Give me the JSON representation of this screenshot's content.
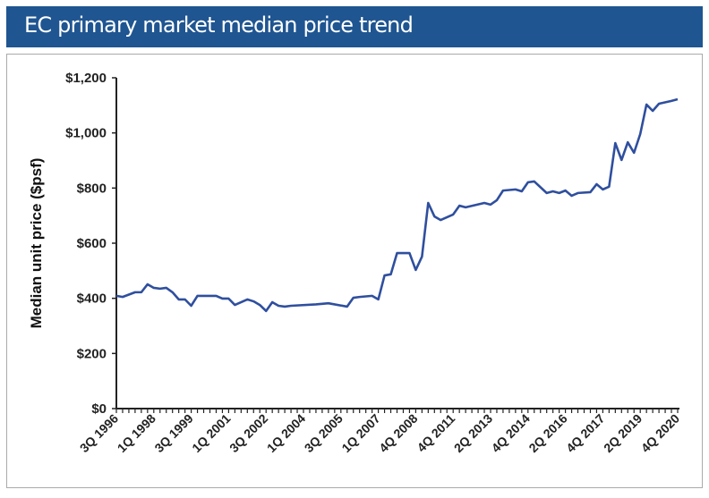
{
  "header": {
    "title": "EC primary market median price trend"
  },
  "chart_data": {
    "type": "line",
    "title": "EC primary market median price trend",
    "xlabel": "",
    "ylabel": "Median unit price ($psf)",
    "ylim": [
      0,
      1200
    ],
    "yticks": [
      0,
      200,
      400,
      600,
      800,
      1000,
      1200
    ],
    "ytick_labels": [
      "$0",
      "$200",
      "$400",
      "$600",
      "$800",
      "$1,000",
      "$1,200"
    ],
    "x_category_count": 91,
    "xtick_labels": [
      "3Q 1996",
      "1Q 1998",
      "3Q 1999",
      "1Q 2001",
      "3Q 2002",
      "1Q 2004",
      "3Q 2005",
      "1Q 2007",
      "4Q 2008",
      "4Q 2011",
      "2Q 2013",
      "4Q 2014",
      "2Q 2016",
      "4Q 2017",
      "2Q 2019",
      "4Q 2020"
    ],
    "grid": false,
    "line_color": "#2f4f9e",
    "series": [
      {
        "points": [
          [
            0,
            409
          ],
          [
            1,
            405
          ],
          [
            3,
            422
          ],
          [
            4,
            422
          ],
          [
            5,
            451
          ],
          [
            6,
            438
          ],
          [
            7,
            435
          ],
          [
            8,
            438
          ],
          [
            9,
            422
          ],
          [
            10,
            396
          ],
          [
            11,
            396
          ],
          [
            12,
            373
          ],
          [
            13,
            409
          ],
          [
            16,
            409
          ],
          [
            17,
            399
          ],
          [
            18,
            399
          ],
          [
            19,
            376
          ],
          [
            21,
            396
          ],
          [
            22,
            389
          ],
          [
            23,
            376
          ],
          [
            24,
            354
          ],
          [
            25,
            386
          ],
          [
            26,
            373
          ],
          [
            27,
            370
          ],
          [
            28,
            373
          ],
          [
            32,
            378
          ],
          [
            34,
            382
          ],
          [
            37,
            370
          ],
          [
            38,
            402
          ],
          [
            39,
            405
          ],
          [
            41,
            409
          ],
          [
            42,
            396
          ],
          [
            43,
            483
          ],
          [
            44,
            487
          ],
          [
            45,
            564
          ],
          [
            47,
            564
          ],
          [
            48,
            503
          ],
          [
            49,
            551
          ],
          [
            50,
            746
          ],
          [
            51,
            697
          ],
          [
            52,
            684
          ],
          [
            54,
            704
          ],
          [
            55,
            736
          ],
          [
            56,
            730
          ],
          [
            59,
            746
          ],
          [
            60,
            740
          ],
          [
            61,
            756
          ],
          [
            62,
            791
          ],
          [
            64,
            795
          ],
          [
            65,
            788
          ],
          [
            66,
            821
          ],
          [
            67,
            824
          ],
          [
            69,
            782
          ],
          [
            70,
            788
          ],
          [
            71,
            782
          ],
          [
            72,
            791
          ],
          [
            73,
            772
          ],
          [
            74,
            782
          ],
          [
            76,
            785
          ],
          [
            77,
            814
          ],
          [
            78,
            795
          ],
          [
            79,
            805
          ],
          [
            80,
            963
          ],
          [
            81,
            902
          ],
          [
            82,
            966
          ],
          [
            83,
            928
          ],
          [
            84,
            996
          ],
          [
            85,
            1103
          ],
          [
            86,
            1080
          ],
          [
            87,
            1106
          ],
          [
            89,
            1116
          ],
          [
            90,
            1122
          ]
        ]
      }
    ]
  }
}
